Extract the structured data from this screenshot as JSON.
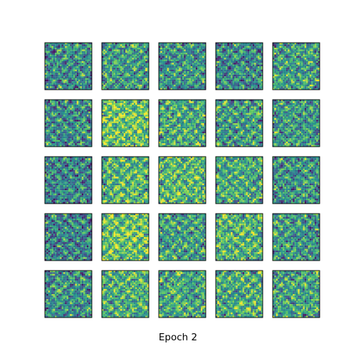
{
  "chart_data": {
    "type": "heatmap",
    "title": "",
    "caption": "Epoch 2",
    "rows": 5,
    "cols": 5,
    "colormap": "viridis",
    "colors": {
      "low": "#440154",
      "mid": "#21918c",
      "high": "#fde725",
      "frame": "#000000",
      "background": "#ffffff"
    },
    "panels": [
      {
        "row": 0,
        "col": 0,
        "tone": 0.48
      },
      {
        "row": 0,
        "col": 1,
        "tone": 0.52
      },
      {
        "row": 0,
        "col": 2,
        "tone": 0.5
      },
      {
        "row": 0,
        "col": 3,
        "tone": 0.46
      },
      {
        "row": 0,
        "col": 4,
        "tone": 0.55
      },
      {
        "row": 1,
        "col": 0,
        "tone": 0.47
      },
      {
        "row": 1,
        "col": 1,
        "tone": 0.72
      },
      {
        "row": 1,
        "col": 2,
        "tone": 0.58
      },
      {
        "row": 1,
        "col": 3,
        "tone": 0.54
      },
      {
        "row": 1,
        "col": 4,
        "tone": 0.53
      },
      {
        "row": 2,
        "col": 0,
        "tone": 0.44
      },
      {
        "row": 2,
        "col": 1,
        "tone": 0.64
      },
      {
        "row": 2,
        "col": 2,
        "tone": 0.66
      },
      {
        "row": 2,
        "col": 3,
        "tone": 0.6
      },
      {
        "row": 2,
        "col": 4,
        "tone": 0.5
      },
      {
        "row": 3,
        "col": 0,
        "tone": 0.43
      },
      {
        "row": 3,
        "col": 1,
        "tone": 0.7
      },
      {
        "row": 3,
        "col": 2,
        "tone": 0.55
      },
      {
        "row": 3,
        "col": 3,
        "tone": 0.63
      },
      {
        "row": 3,
        "col": 4,
        "tone": 0.52
      },
      {
        "row": 4,
        "col": 0,
        "tone": 0.5
      },
      {
        "row": 4,
        "col": 1,
        "tone": 0.62
      },
      {
        "row": 4,
        "col": 2,
        "tone": 0.58
      },
      {
        "row": 4,
        "col": 3,
        "tone": 0.6
      },
      {
        "row": 4,
        "col": 4,
        "tone": 0.56
      }
    ]
  }
}
